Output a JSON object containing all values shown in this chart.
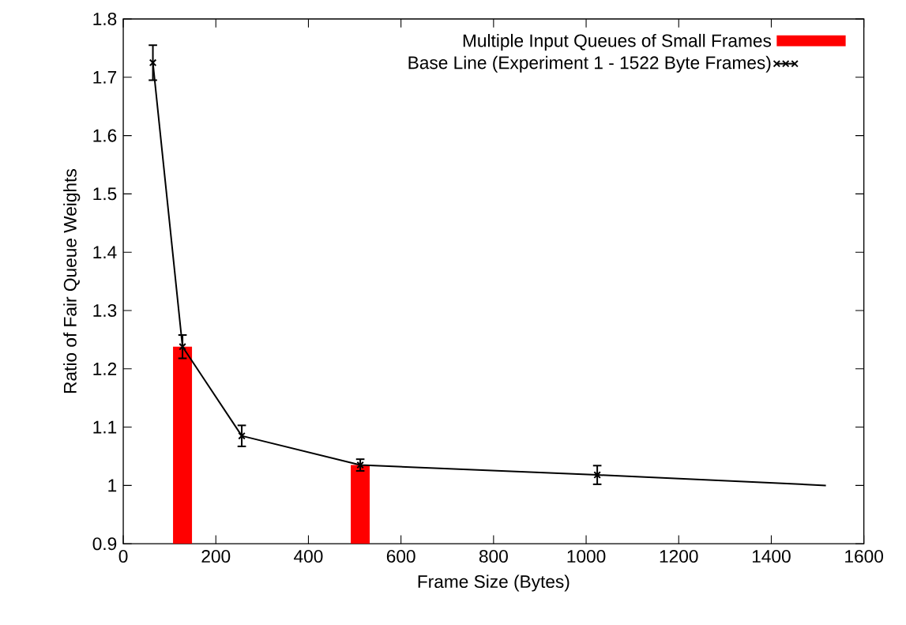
{
  "chart_data": {
    "type": "line",
    "xlabel": "Frame Size (Bytes)",
    "ylabel": "Ratio of Fair Queue Weights",
    "xlim": [
      0,
      1600
    ],
    "xticks": [
      0,
      200,
      400,
      600,
      800,
      1000,
      1200,
      1400,
      1600
    ],
    "ylim": [
      0.9,
      1.8
    ],
    "yticks": [
      0.9,
      1,
      1.1,
      1.2,
      1.3,
      1.4,
      1.5,
      1.6,
      1.7,
      1.8
    ],
    "legend": "top right",
    "marker": "cross",
    "line_style": "solid",
    "series": [
      {
        "name": "Multiple Input Queues of Small Frames",
        "type": "bar",
        "color": "#ff0000",
        "x": [
          128,
          512
        ],
        "values": [
          1.238,
          1.035
        ]
      },
      {
        "name": "Base Line (Experiment 1 - 1522 Byte Frames)",
        "color": "#000000",
        "x": [
          64,
          128,
          256,
          512,
          1024,
          1518
        ],
        "values": [
          1.725,
          1.238,
          1.085,
          1.035,
          1.018,
          1.0
        ],
        "errors": [
          0.03,
          0.02,
          0.018,
          0.01,
          0.016,
          null
        ]
      }
    ]
  }
}
